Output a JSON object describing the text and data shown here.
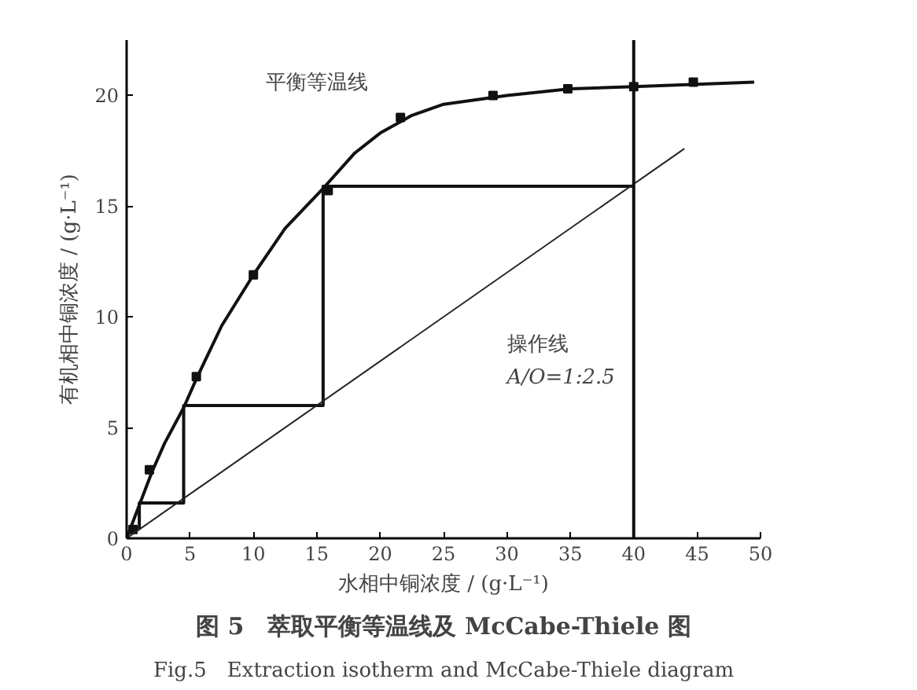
{
  "chart_data": {
    "type": "line",
    "title": "图 5　萃取平衡等温线及 McCabe-Thiele 图",
    "subtitle": "Fig.5　Extraction isotherm and McCabe-Thiele diagram",
    "xlabel": "水相中铜浓度 / (g·L⁻¹)",
    "ylabel": "有机相中铜浓度 / (g·L⁻¹)",
    "xlim": [
      0,
      50
    ],
    "ylim": [
      0,
      22.5
    ],
    "xticks": [
      0,
      5,
      10,
      15,
      20,
      25,
      30,
      35,
      40,
      45,
      50
    ],
    "yticks": [
      0,
      5,
      10,
      15,
      20
    ],
    "grid": false,
    "line_style": "solid",
    "series": [
      {
        "color": "#111111",
        "x": [
          0,
          1,
          2,
          3,
          4.5,
          5.5,
          7.5,
          10,
          12.5,
          15.5,
          18,
          20,
          22.5,
          25,
          30,
          35,
          40,
          45,
          49.5
        ],
        "values": [
          0,
          1.5,
          3,
          4.3,
          5.9,
          7.2,
          9.6,
          11.9,
          14,
          15.8,
          17.4,
          18.3,
          19.1,
          19.6,
          20.0,
          20.3,
          20.4,
          20.5,
          20.6
        ]
      },
      {
        "type": "scatter",
        "marker": "square",
        "color": "#111111",
        "x": [
          0.5,
          1.8,
          5.5,
          10,
          15.9,
          21.6,
          28.9,
          34.8,
          40,
          44.7
        ],
        "values": [
          0.4,
          3.1,
          7.3,
          11.9,
          15.7,
          19,
          20,
          20.3,
          20.4,
          20.6
        ]
      },
      {
        "color": "#111111",
        "x": [
          40,
          15.5,
          15.5,
          4.5,
          4.5,
          1,
          1
        ],
        "values": [
          15.9,
          15.9,
          6,
          6,
          1.6,
          1.6,
          0.4
        ]
      },
      {
        "color": "#222222",
        "x": [
          0,
          44
        ],
        "values": [
          0,
          17.6
        ]
      }
    ],
    "ref_lines": [
      {
        "axis": "x",
        "value": 40,
        "color": "#111111"
      }
    ],
    "annotations": [
      "平衡等温线",
      "操作线",
      "A/O=1:2.5"
    ]
  }
}
